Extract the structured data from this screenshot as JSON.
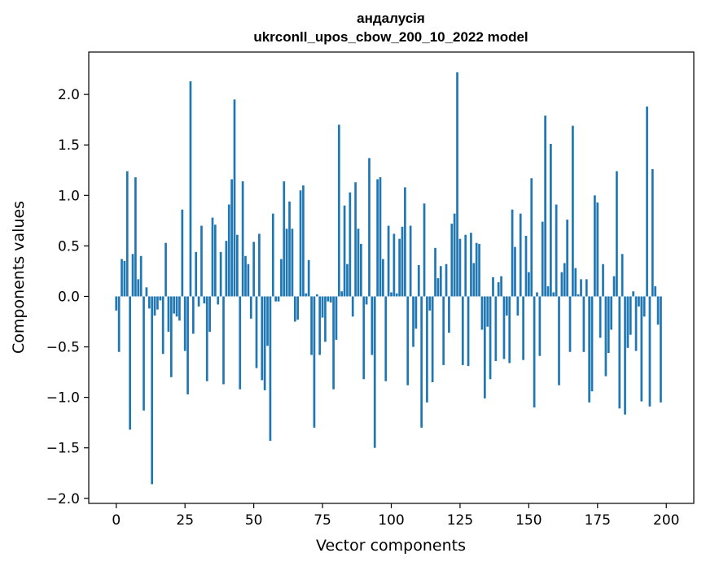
{
  "chart_data": {
    "type": "bar",
    "title": "андалусія",
    "subtitle": "ukrconll_upos_cbow_200_10_2022 model",
    "xlabel": "Vector components",
    "ylabel": "Components values",
    "xlim": [
      -10,
      210
    ],
    "ylim": [
      -2.05,
      2.42
    ],
    "xticks": [
      0,
      25,
      50,
      75,
      100,
      125,
      150,
      175,
      200
    ],
    "yticks": [
      -2.0,
      -1.5,
      -1.0,
      -0.5,
      0.0,
      0.5,
      1.0,
      1.5,
      2.0
    ],
    "xtick_labels": [
      "0",
      "25",
      "50",
      "75",
      "100",
      "125",
      "150",
      "175",
      "200"
    ],
    "ytick_labels": [
      "−2.0",
      "−1.5",
      "−1.0",
      "−0.5",
      "0.0",
      "0.5",
      "1.0",
      "1.5",
      "2.0"
    ],
    "bar_color": "#1f77b4",
    "grid": false,
    "values": [
      -0.14,
      -0.55,
      0.37,
      0.35,
      1.24,
      -1.32,
      0.42,
      1.18,
      0.17,
      0.4,
      -1.13,
      0.09,
      -0.12,
      -1.86,
      -0.19,
      -0.13,
      -0.04,
      -0.57,
      0.53,
      -0.35,
      -0.8,
      -0.17,
      -0.2,
      -0.24,
      0.86,
      -0.54,
      -0.97,
      2.13,
      -0.37,
      0.44,
      -0.1,
      0.7,
      -0.07,
      -0.84,
      -0.35,
      0.78,
      0.71,
      -0.08,
      0.44,
      -0.87,
      0.55,
      0.91,
      1.16,
      1.95,
      0.61,
      -0.92,
      1.14,
      0.4,
      0.32,
      -0.22,
      0.54,
      -0.71,
      0.62,
      -0.83,
      -0.93,
      -0.49,
      -1.43,
      0.82,
      -0.05,
      -0.05,
      0.37,
      1.14,
      0.67,
      0.94,
      0.67,
      -0.25,
      -0.23,
      1.05,
      1.1,
      0.03,
      0.36,
      -0.58,
      -1.3,
      0.02,
      -0.58,
      -0.21,
      -0.45,
      -0.05,
      -0.06,
      -0.92,
      -0.43,
      1.7,
      0.05,
      0.9,
      0.32,
      1.03,
      -0.2,
      1.13,
      0.67,
      0.52,
      -0.82,
      -0.08,
      1.37,
      -0.58,
      -1.5,
      1.16,
      1.18,
      0.37,
      -0.84,
      0.7,
      0.04,
      0.62,
      0.03,
      0.57,
      0.69,
      1.08,
      -0.88,
      0.7,
      -0.5,
      -0.32,
      0.31,
      -1.3,
      0.92,
      -1.05,
      -0.14,
      -0.85,
      0.48,
      0.18,
      0.3,
      -0.68,
      0.32,
      -0.36,
      0.72,
      0.82,
      2.22,
      0.57,
      -0.68,
      0.61,
      -0.69,
      0.63,
      0.33,
      0.53,
      0.52,
      -0.33,
      -1.01,
      -0.3,
      -0.82,
      0.19,
      -0.64,
      0.14,
      0.2,
      -0.62,
      -0.19,
      -0.66,
      0.86,
      0.49,
      -0.19,
      0.82,
      -0.63,
      0.6,
      0.24,
      1.17,
      -1.1,
      0.04,
      -0.59,
      0.74,
      1.79,
      0.1,
      1.51,
      0.04,
      0.91,
      -0.88,
      0.24,
      0.33,
      0.76,
      -0.55,
      1.69,
      0.28,
      0.02,
      0.17,
      -0.55,
      0.17,
      -1.05,
      -0.94,
      1.0,
      0.93,
      -0.41,
      0.32,
      -0.79,
      -0.56,
      -0.33,
      0.2,
      1.24,
      -1.11,
      0.42,
      -1.17,
      -0.51,
      -0.38,
      0.05,
      -0.54,
      -0.1,
      -1.04,
      -0.2,
      1.88,
      -1.09,
      1.26,
      0.1,
      -0.28,
      -1.05
    ]
  }
}
